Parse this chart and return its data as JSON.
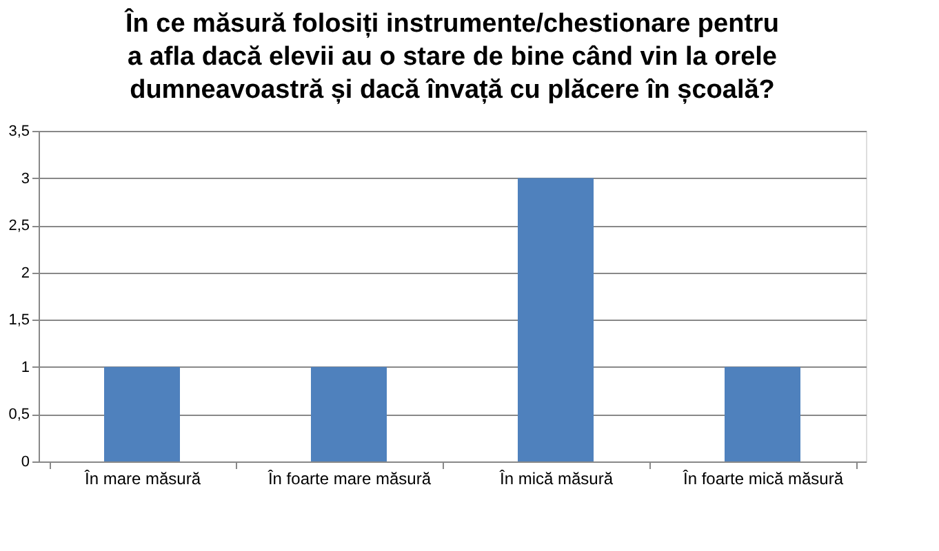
{
  "chart_data": {
    "type": "bar",
    "title": "În ce măsură folosiți instrumente/chestionare pentru\na afla dacă elevii au o stare de bine când vin la orele\ndumneavoastră și dacă învață cu plăcere în școală?",
    "categories": [
      "În mare măsură",
      "În foarte mare măsură",
      "În mică măsură",
      "În foarte mică măsură"
    ],
    "values": [
      1,
      1,
      3,
      1
    ],
    "color": "#4f81bd",
    "ylim": [
      0,
      3.5
    ],
    "yticks": [
      0,
      {
        "value": 0.5,
        "label": "0,5"
      },
      1,
      {
        "value": 1.5,
        "label": "1,5"
      },
      2,
      {
        "value": 2.5,
        "label": "2,5"
      },
      3,
      {
        "value": 3.5,
        "label": "3,5"
      }
    ],
    "grid": "y"
  }
}
